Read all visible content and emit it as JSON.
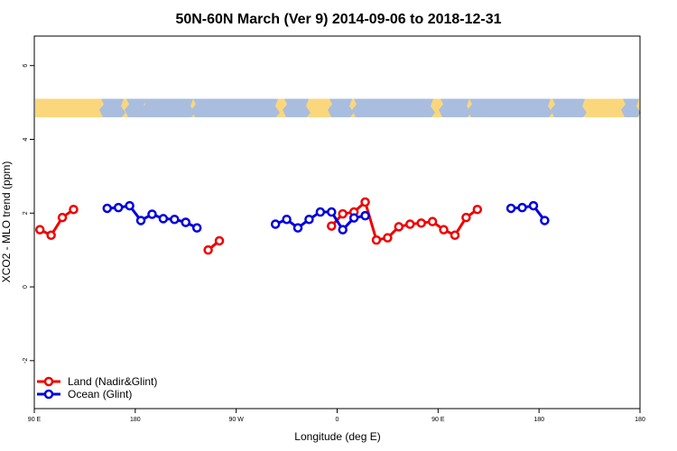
{
  "chart_data": {
    "type": "line",
    "title": "50N-60N March (Ver 9)   2014-09-06 to 2018-12-31",
    "xlabel": "Longitude (deg E)",
    "ylabel": "XCO2 - MLO trend (ppm)",
    "xlim": [
      -90,
      180
    ],
    "ylim": [
      -3.3,
      6.8
    ],
    "x_ticks": [
      {
        "value": -90,
        "label": "90 E"
      },
      {
        "value": -45,
        "label": "180"
      },
      {
        "value": 0,
        "label": "90 W"
      },
      {
        "value": 45,
        "label": "0"
      },
      {
        "value": 90,
        "label": "90 E"
      },
      {
        "value": 135,
        "label": "180"
      }
    ],
    "y_ticks": [
      -2,
      0,
      2,
      4,
      6
    ],
    "grid": false,
    "legend_position": "bottom-left",
    "map_strip": {
      "y_range": [
        4.6,
        5.1
      ],
      "ocean_color": "#a9bddf",
      "land_color": "#fad77c"
    },
    "series": [
      {
        "name": "Land (Nadir&Glint)",
        "color": "#ee0000",
        "segments": [
          [
            [
              -87.5,
              1.55
            ],
            [
              -82.5,
              1.4
            ],
            [
              -77.5,
              1.88
            ],
            [
              -72.5,
              2.1
            ]
          ],
          [
            [
              -22.5,
              1.75
            ]
          ],
          [
            [
              -12.5,
              1.0
            ],
            [
              -7.5,
              1.25
            ]
          ],
          [
            [
              42.5,
              1.65
            ],
            [
              47.5,
              1.98
            ],
            [
              52.5,
              2.03
            ],
            [
              57.5,
              2.3
            ],
            [
              62.5,
              1.27
            ],
            [
              67.5,
              1.33
            ],
            [
              72.5,
              1.63
            ],
            [
              77.5,
              1.7
            ],
            [
              82.5,
              1.73
            ],
            [
              87.5,
              1.77
            ],
            [
              92.5,
              1.55
            ],
            [
              97.5,
              1.4
            ],
            [
              102.5,
              1.88
            ],
            [
              107.5,
              2.1
            ]
          ]
        ]
      },
      {
        "name": "Ocean (Glint)",
        "color": "#0000dd",
        "segments": [
          [
            [
              -57.5,
              2.13
            ],
            [
              -52.5,
              2.15
            ],
            [
              -47.5,
              2.2
            ],
            [
              -42.5,
              1.8
            ],
            [
              -37.5,
              1.97
            ],
            [
              -32.5,
              1.85
            ],
            [
              -27.5,
              1.83
            ],
            [
              -22.5,
              1.75
            ],
            [
              -17.5,
              1.6
            ]
          ],
          [
            [
              17.5,
              1.7
            ],
            [
              22.5,
              1.83
            ],
            [
              27.5,
              1.6
            ],
            [
              32.5,
              1.83
            ],
            [
              37.5,
              2.03
            ],
            [
              42.5,
              2.03
            ],
            [
              47.5,
              1.55
            ],
            [
              52.5,
              1.87
            ],
            [
              57.5,
              1.93
            ]
          ],
          [
            [
              122.5,
              2.13
            ],
            [
              127.5,
              2.15
            ],
            [
              132.5,
              2.2
            ],
            [
              137.5,
              1.8
            ]
          ]
        ]
      }
    ]
  }
}
